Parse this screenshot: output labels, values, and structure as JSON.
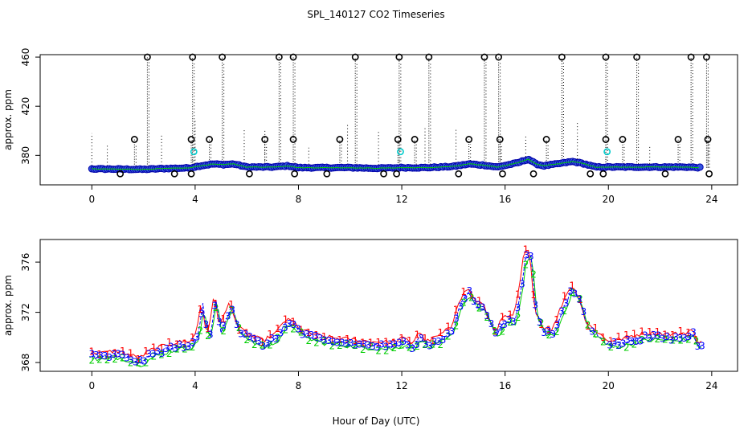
{
  "figure": {
    "title": "SPL_140127  CO2 Timeseries",
    "xlabel": "Hour of Day (UTC)"
  },
  "colors": {
    "axis": "#000000",
    "series1": "#ff0000",
    "series2": "#00cd00",
    "series3": "#0000ff",
    "outlier": "#000000",
    "flag": "#00cccc",
    "point_fill": "#3355dd"
  },
  "chart_data": [
    {
      "type": "scatter",
      "id": "top",
      "title": "",
      "ylabel": "approx. ppm",
      "xlim": [
        -2.0,
        25.0
      ],
      "ylim": [
        356,
        462
      ],
      "xticks": [
        0,
        4,
        8,
        12,
        16,
        20,
        24
      ],
      "yticks": [
        380,
        420,
        460
      ],
      "baseline": [
        [
          0,
          369.0
        ],
        [
          1,
          368.8
        ],
        [
          2,
          368.6
        ],
        [
          3,
          369.4
        ],
        [
          3.8,
          369.8
        ],
        [
          4.2,
          371.5
        ],
        [
          4.7,
          373
        ],
        [
          5.1,
          372.5
        ],
        [
          5.5,
          373
        ],
        [
          6,
          370.5
        ],
        [
          7,
          370.5
        ],
        [
          7.6,
          371.5
        ],
        [
          8,
          370
        ],
        [
          9,
          370
        ],
        [
          10,
          370
        ],
        [
          11,
          369.5
        ],
        [
          12,
          370
        ],
        [
          13,
          370
        ],
        [
          14,
          371
        ],
        [
          14.6,
          373
        ],
        [
          15.2,
          372
        ],
        [
          15.7,
          370.5
        ],
        [
          16.5,
          374
        ],
        [
          16.9,
          377
        ],
        [
          17.2,
          373
        ],
        [
          17.5,
          371.5
        ],
        [
          18,
          373
        ],
        [
          18.6,
          375
        ],
        [
          19,
          373.5
        ],
        [
          19.5,
          370.5
        ],
        [
          20,
          370.5
        ],
        [
          21,
          370.5
        ],
        [
          22,
          370.5
        ],
        [
          23,
          370.5
        ],
        [
          23.6,
          370
        ]
      ],
      "high_outliers": [
        {
          "x": 2.15,
          "y": 460
        },
        {
          "x": 3.9,
          "y": 460
        },
        {
          "x": 5.05,
          "y": 460
        },
        {
          "x": 7.25,
          "y": 460
        },
        {
          "x": 7.8,
          "y": 460
        },
        {
          "x": 10.2,
          "y": 460
        },
        {
          "x": 11.9,
          "y": 460
        },
        {
          "x": 13.05,
          "y": 460
        },
        {
          "x": 15.2,
          "y": 460
        },
        {
          "x": 15.75,
          "y": 460
        },
        {
          "x": 18.2,
          "y": 460
        },
        {
          "x": 19.9,
          "y": 460
        },
        {
          "x": 21.1,
          "y": 460
        },
        {
          "x": 23.2,
          "y": 460
        },
        {
          "x": 23.8,
          "y": 460
        }
      ],
      "mid_outliers": [
        {
          "x": 1.65,
          "y": 393
        },
        {
          "x": 3.85,
          "y": 393
        },
        {
          "x": 4.55,
          "y": 393
        },
        {
          "x": 6.7,
          "y": 393
        },
        {
          "x": 7.8,
          "y": 393
        },
        {
          "x": 9.6,
          "y": 393
        },
        {
          "x": 11.85,
          "y": 393
        },
        {
          "x": 12.5,
          "y": 393
        },
        {
          "x": 14.6,
          "y": 393
        },
        {
          "x": 15.8,
          "y": 393
        },
        {
          "x": 17.6,
          "y": 393
        },
        {
          "x": 19.9,
          "y": 393
        },
        {
          "x": 20.55,
          "y": 393
        },
        {
          "x": 22.7,
          "y": 393
        },
        {
          "x": 23.85,
          "y": 393
        }
      ],
      "low_outliers": [
        {
          "x": 1.1,
          "y": 365
        },
        {
          "x": 3.2,
          "y": 365
        },
        {
          "x": 3.85,
          "y": 365
        },
        {
          "x": 6.1,
          "y": 365
        },
        {
          "x": 7.85,
          "y": 365
        },
        {
          "x": 9.1,
          "y": 365
        },
        {
          "x": 11.3,
          "y": 365
        },
        {
          "x": 11.8,
          "y": 365
        },
        {
          "x": 14.2,
          "y": 365
        },
        {
          "x": 15.9,
          "y": 365
        },
        {
          "x": 17.1,
          "y": 365
        },
        {
          "x": 19.3,
          "y": 365
        },
        {
          "x": 19.8,
          "y": 365
        },
        {
          "x": 22.2,
          "y": 365
        },
        {
          "x": 23.9,
          "y": 365
        }
      ],
      "flagged": [
        {
          "x": 3.95,
          "y": 383
        },
        {
          "x": 11.95,
          "y": 383
        },
        {
          "x": 19.95,
          "y": 383
        }
      ]
    },
    {
      "type": "line",
      "id": "bottom",
      "title": "",
      "ylabel": "approx. ppm",
      "xlim": [
        -2.0,
        25.0
      ],
      "ylim": [
        367.3,
        377.8
      ],
      "xticks": [
        0,
        4,
        8,
        12,
        16,
        20,
        24
      ],
      "yticks": [
        368,
        372,
        376
      ],
      "series_names": [
        "1",
        "2",
        "3"
      ],
      "profile": [
        [
          0,
          368.5
        ],
        [
          0.5,
          368.4
        ],
        [
          1,
          368.6
        ],
        [
          1.5,
          368.3
        ],
        [
          1.9,
          368.0
        ],
        [
          2.3,
          368.6
        ],
        [
          3,
          369.1
        ],
        [
          3.5,
          369.3
        ],
        [
          3.9,
          369.4
        ],
        [
          4.1,
          370.0
        ],
        [
          4.3,
          372.6
        ],
        [
          4.45,
          370.5
        ],
        [
          4.6,
          370.2
        ],
        [
          4.8,
          373.2
        ],
        [
          5.0,
          370.5
        ],
        [
          5.2,
          371.5
        ],
        [
          5.4,
          372.5
        ],
        [
          5.7,
          370.5
        ],
        [
          6.2,
          369.8
        ],
        [
          6.7,
          369.4
        ],
        [
          7.2,
          370.0
        ],
        [
          7.5,
          371.0
        ],
        [
          7.8,
          371.0
        ],
        [
          8.2,
          370.2
        ],
        [
          9,
          369.7
        ],
        [
          10,
          369.5
        ],
        [
          11,
          369.3
        ],
        [
          11.7,
          369.3
        ],
        [
          12.1,
          369.6
        ],
        [
          12.5,
          369.2
        ],
        [
          12.7,
          370.2
        ],
        [
          13,
          369.3
        ],
        [
          13.5,
          369.8
        ],
        [
          14,
          370.5
        ],
        [
          14.2,
          372.3
        ],
        [
          14.6,
          373.6
        ],
        [
          14.9,
          372.6
        ],
        [
          15.2,
          372.3
        ],
        [
          15.5,
          370.8
        ],
        [
          15.7,
          370.2
        ],
        [
          16.0,
          371.3
        ],
        [
          16.4,
          371.3
        ],
        [
          16.6,
          373.5
        ],
        [
          16.8,
          376.5
        ],
        [
          17.0,
          376.5
        ],
        [
          17.2,
          372.0
        ],
        [
          17.5,
          370.5
        ],
        [
          17.9,
          370.3
        ],
        [
          18.3,
          372.5
        ],
        [
          18.6,
          373.8
        ],
        [
          18.9,
          373.0
        ],
        [
          19.2,
          370.8
        ],
        [
          19.5,
          370.3
        ],
        [
          19.7,
          370.0
        ],
        [
          20.0,
          369.4
        ],
        [
          20.5,
          369.5
        ],
        [
          21.0,
          369.8
        ],
        [
          21.5,
          370.0
        ],
        [
          22.0,
          370.0
        ],
        [
          22.5,
          369.9
        ],
        [
          23.0,
          370.0
        ],
        [
          23.3,
          370.3
        ],
        [
          23.5,
          369.2
        ],
        [
          23.7,
          369.6
        ]
      ]
    }
  ]
}
